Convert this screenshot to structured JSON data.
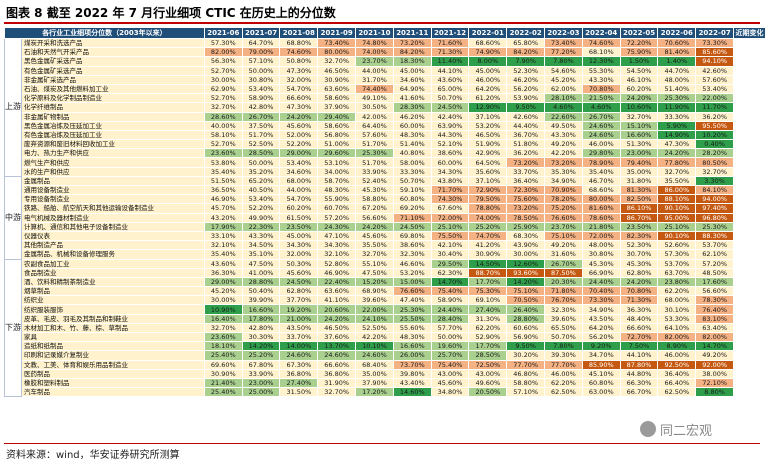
{
  "title": "图表 8 截至 2022 年 7 月行业细项 CTIC 在历史上的分位数",
  "source": "资料来源：wind，华安证券研究所测算",
  "watermark": "同二宏观",
  "colors": {
    "header": "#1f4e79",
    "low": "#2e9e4a",
    "mid_low": "#a9d08e",
    "mid": "#fff2cc",
    "high": "#f4b183",
    "very_high": "#c65911",
    "title_rule": "#c00000"
  },
  "chart_data": {
    "type": "table",
    "title": "截至 2022 年 7 月行业细项 CTIC 在历史上的分位数",
    "columns": [
      "各行业工业细项分位数（2003年以来）",
      "2021-06",
      "2021-07",
      "2021-08",
      "2021-09",
      "2021-10",
      "2021-11",
      "2021-12",
      "2022-01",
      "2022-02",
      "2022-03",
      "2022-04",
      "2022-05",
      "2022-06",
      "2022-07",
      "近期变化"
    ],
    "groups": [
      {
        "name": "上游",
        "rows": [
          {
            "industry": "煤炭开采和洗选产品",
            "values": [
              "57.30%",
              "64.70%",
              "68.80%",
              "73.40%",
              "74.80%",
              "73.20%",
              "71.60%",
              "68.60%",
              "65.80%",
              "73.40%",
              "74.60%",
              "72.20%",
              "70.60%",
              "73.30%"
            ]
          },
          {
            "industry": "石油和天然气开采产品",
            "values": [
              "82.00%",
              "79.00%",
              "74.60%",
              "80.00%",
              "74.00%",
              "84.20%",
              "71.30%",
              "74.90%",
              "84.20%",
              "77.20%",
              "68.10%",
              "75.90%",
              "81.40%",
              "85.60%"
            ]
          },
          {
            "industry": "黑色金属矿采选产品",
            "values": [
              "56.30%",
              "57.10%",
              "50.80%",
              "32.70%",
              "23.70%",
              "18.30%",
              "11.40%",
              "8.00%",
              "7.90%",
              "7.80%",
              "12.30%",
              "1.50%",
              "1.40%",
              "94.10%"
            ]
          },
          {
            "industry": "有色金属矿采选产品",
            "values": [
              "52.70%",
              "50.00%",
              "47.30%",
              "46.50%",
              "44.00%",
              "45.00%",
              "44.10%",
              "45.00%",
              "52.30%",
              "54.60%",
              "55.30%",
              "54.50%",
              "44.70%",
              "42.60%"
            ]
          },
          {
            "industry": "非金属矿采选产品",
            "values": [
              "30.00%",
              "30.80%",
              "32.00%",
              "30.90%",
              "31.70%",
              "34.60%",
              "43.60%",
              "46.00%",
              "46.20%",
              "45.20%",
              "43.30%",
              "46.10%",
              "48.00%",
              "57.60%"
            ]
          },
          {
            "industry": "石油、煤炭及其他燃料加工业",
            "values": [
              "62.90%",
              "53.40%",
              "54.70%",
              "63.60%",
              "74.40%",
              "64.90%",
              "65.00%",
              "64.20%",
              "56.20%",
              "62.00%",
              "70.80%",
              "60.20%",
              "51.40%",
              "53.40%"
            ]
          },
          {
            "industry": "化学原料及化学制品制造业",
            "values": [
              "52.70%",
              "58.90%",
              "66.60%",
              "58.60%",
              "49.10%",
              "41.60%",
              "50.70%",
              "61.20%",
              "53.90%",
              "28.10%",
              "21.50%",
              "24.20%",
              "25.30%",
              "22.00%"
            ]
          },
          {
            "industry": "化学纤维制品",
            "values": [
              "32.70%",
              "42.80%",
              "47.30%",
              "37.90%",
              "30.50%",
              "28.30%",
              "24.50%",
              "12.90%",
              "9.50%",
              "4.60%",
              "4.60%",
              "10.60%",
              "11.90%",
              "11.70%"
            ]
          },
          {
            "industry": "非金属矿物制品",
            "values": [
              "28.60%",
              "26.70%",
              "24.20%",
              "29.40%",
              "42.00%",
              "46.20%",
              "42.40%",
              "37.10%",
              "42.60%",
              "22.60%",
              "26.70%",
              "32.70%",
              "33.30%",
              "36.20%"
            ]
          },
          {
            "industry": "黑色金属冶炼及压延加工业",
            "values": [
              "40.00%",
              "37.50%",
              "45.60%",
              "58.60%",
              "64.40%",
              "60.00%",
              "63.90%",
              "53.20%",
              "44.40%",
              "49.50%",
              "24.60%",
              "15.10%",
              "5.90%",
              "95.50%"
            ]
          },
          {
            "industry": "有色金属冶炼及压延加工业",
            "values": [
              "58.10%",
              "51.70%",
              "52.00%",
              "56.80%",
              "57.60%",
              "48.30%",
              "44.30%",
              "46.50%",
              "36.70%",
              "43.30%",
              "24.60%",
              "16.60%",
              "14.90%",
              "10.20%"
            ]
          },
          {
            "industry": "废弃资源和废旧材料回收加工业",
            "values": [
              "52.70%",
              "52.50%",
              "52.20%",
              "51.00%",
              "51.70%",
              "51.40%",
              "52.10%",
              "51.90%",
              "51.80%",
              "49.20%",
              "46.00%",
              "51.30%",
              "47.30%",
              "0.40%"
            ]
          },
          {
            "industry": "电力、热力生产和供应",
            "values": [
              "23.60%",
              "28.50%",
              "29.00%",
              "29.60%",
              "25.30%",
              "40.80%",
              "38.60%",
              "42.90%",
              "36.20%",
              "42.20%",
              "29.80%",
              "23.00%",
              "24.20%",
              "28.20%"
            ]
          },
          {
            "industry": "燃气生产和供应",
            "values": [
              "53.80%",
              "50.00%",
              "53.40%",
              "53.10%",
              "51.70%",
              "58.00%",
              "60.00%",
              "64.50%",
              "73.20%",
              "73.20%",
              "78.90%",
              "79.40%",
              "77.80%",
              "80.50%"
            ]
          },
          {
            "industry": "水的生产和供应",
            "values": [
              "35.40%",
              "35.20%",
              "34.60%",
              "34.00%",
              "33.90%",
              "33.30%",
              "34.30%",
              "35.60%",
              "33.70%",
              "35.30%",
              "35.40%",
              "35.00%",
              "32.70%",
              "32.70%"
            ]
          }
        ]
      },
      {
        "name": "中游",
        "rows": [
          {
            "industry": "金属制品",
            "values": [
              "51.50%",
              "65.20%",
              "68.00%",
              "58.70%",
              "52.40%",
              "50.70%",
              "43.80%",
              "37.10%",
              "36.40%",
              "34.90%",
              "46.70%",
              "31.80%",
              "35.50%",
              "3.30%"
            ]
          },
          {
            "industry": "通用设备制造业",
            "values": [
              "36.50%",
              "40.50%",
              "44.00%",
              "48.30%",
              "45.30%",
              "59.10%",
              "71.70%",
              "72.90%",
              "72.30%",
              "70.90%",
              "68.60%",
              "81.30%",
              "86.00%",
              "84.10%"
            ]
          },
          {
            "industry": "专用设备制造业",
            "values": [
              "46.90%",
              "53.40%",
              "54.70%",
              "55.90%",
              "58.80%",
              "60.80%",
              "74.30%",
              "79.50%",
              "75.60%",
              "78.20%",
              "80.00%",
              "82.50%",
              "88.10%",
              "94.00%"
            ]
          },
          {
            "industry": "铁路、船舶、航空航天和其他运输设备制造业",
            "values": [
              "45.70%",
              "52.20%",
              "60.20%",
              "60.70%",
              "67.20%",
              "69.20%",
              "67.60%",
              "78.80%",
              "73.20%",
              "75.20%",
              "81.60%",
              "86.10%",
              "90.10%",
              "97.40%"
            ]
          },
          {
            "industry": "电气机械及器材制造业",
            "values": [
              "43.20%",
              "49.90%",
              "61.50%",
              "57.20%",
              "56.60%",
              "71.10%",
              "72.00%",
              "74.00%",
              "78.50%",
              "76.60%",
              "78.60%",
              "86.70%",
              "95.00%",
              "96.80%"
            ]
          },
          {
            "industry": "计算机、通信和其他电子设备制造业",
            "values": [
              "17.90%",
              "22.30%",
              "23.50%",
              "24.30%",
              "24.20%",
              "24.50%",
              "25.10%",
              "25.20%",
              "25.90%",
              "23.70%",
              "21.80%",
              "23.50%",
              "25.10%",
              "25.30%"
            ]
          },
          {
            "industry": "仪器仪表",
            "values": [
              "33.10%",
              "43.30%",
              "45.00%",
              "47.10%",
              "45.60%",
              "69.80%",
              "75.50%",
              "74.70%",
              "68.30%",
              "75.10%",
              "72.00%",
              "82.30%",
              "90.10%",
              "88.30%"
            ]
          },
          {
            "industry": "其他制造产品",
            "values": [
              "32.10%",
              "34.50%",
              "34.30%",
              "34.30%",
              "35.50%",
              "38.60%",
              "42.10%",
              "41.20%",
              "43.90%",
              "49.20%",
              "48.00%",
              "52.30%",
              "52.60%",
              "53.70%"
            ]
          },
          {
            "industry": "金属制品、机械和设备修理服务",
            "values": [
              "35.40%",
              "35.10%",
              "32.00%",
              "32.10%",
              "32.70%",
              "32.30%",
              "30.40%",
              "30.90%",
              "30.00%",
              "31.60%",
              "30.80%",
              "30.70%",
              "57.30%",
              "62.10%"
            ]
          }
        ]
      },
      {
        "name": "下游",
        "rows": [
          {
            "industry": "农副食品加工业",
            "values": [
              "43.60%",
              "47.50%",
              "50.30%",
              "52.80%",
              "55.10%",
              "46.60%",
              "29.50%",
              "14.50%",
              "12.60%",
              "26.70%",
              "45.30%",
              "45.30%",
              "53.70%",
              "57.20%"
            ]
          },
          {
            "industry": "食品制造业",
            "values": [
              "36.30%",
              "41.00%",
              "45.60%",
              "46.90%",
              "47.50%",
              "53.20%",
              "62.30%",
              "88.70%",
              "93.60%",
              "87.50%",
              "66.90%",
              "62.80%",
              "63.70%",
              "48.50%"
            ]
          },
          {
            "industry": "酒、饮料和精制茶制造业",
            "values": [
              "29.00%",
              "28.80%",
              "24.50%",
              "22.40%",
              "15.20%",
              "15.00%",
              "14.70%",
              "17.70%",
              "14.20%",
              "20.30%",
              "24.40%",
              "24.20%",
              "23.80%",
              "17.60%"
            ]
          },
          {
            "industry": "烟草制品",
            "values": [
              "45.20%",
              "50.40%",
              "62.80%",
              "63.60%",
              "68.90%",
              "76.60%",
              "75.40%",
              "75.30%",
              "75.10%",
              "71.80%",
              "70.40%",
              "70.80%",
              "62.20%",
              "56.60%"
            ]
          },
          {
            "industry": "纺织业",
            "values": [
              "30.00%",
              "39.90%",
              "37.70%",
              "41.10%",
              "39.60%",
              "47.40%",
              "58.90%",
              "69.10%",
              "70.50%",
              "76.70%",
              "73.30%",
              "71.30%",
              "68.00%",
              "78.30%"
            ]
          },
          {
            "industry": "纺织服装服饰",
            "values": [
              "10.90%",
              "16.60%",
              "19.20%",
              "20.60%",
              "22.00%",
              "25.30%",
              "24.40%",
              "27.40%",
              "26.40%",
              "32.30%",
              "34.90%",
              "36.30%",
              "30.10%",
              "76.40%"
            ]
          },
          {
            "industry": "皮革、毛皮、羽毛及其制品和制鞋业",
            "values": [
              "16.40%",
              "17.80%",
              "21.00%",
              "24.20%",
              "24.10%",
              "25.50%",
              "28.40%",
              "31.30%",
              "28.80%",
              "39.60%",
              "43.50%",
              "48.40%",
              "53.30%",
              "83.10%"
            ]
          },
          {
            "industry": "木材加工和木、竹、藤、棕、草制品",
            "values": [
              "32.70%",
              "42.80%",
              "43.50%",
              "46.50%",
              "52.50%",
              "55.60%",
              "57.70%",
              "62.20%",
              "60.60%",
              "65.50%",
              "64.20%",
              "66.60%",
              "64.10%",
              "63.40%"
            ]
          },
          {
            "industry": "家具",
            "values": [
              "23.60%",
              "30.30%",
              "33.70%",
              "37.60%",
              "42.20%",
              "48.30%",
              "50.00%",
              "52.90%",
              "56.90%",
              "50.70%",
              "56.20%",
              "72.70%",
              "82.00%",
              "82.00%"
            ]
          },
          {
            "industry": "造纸和纸制品",
            "values": [
              "18.10%",
              "14.20%",
              "14.00%",
              "13.70%",
              "10.10%",
              "16.60%",
              "19.60%",
              "17.70%",
              "9.50%",
              "7.80%",
              "9.20%",
              "7.50%",
              "8.90%",
              "14.70%"
            ]
          },
          {
            "industry": "印刷和记录媒介复制业",
            "values": [
              "25.40%",
              "25.20%",
              "24.60%",
              "24.60%",
              "24.60%",
              "26.00%",
              "25.70%",
              "28.50%",
              "30.20%",
              "39.30%",
              "34.70%",
              "44.10%",
              "46.00%",
              "49.20%"
            ]
          },
          {
            "industry": "文教、工美、体育和娱乐用品制造业",
            "values": [
              "69.60%",
              "67.80%",
              "67.30%",
              "66.60%",
              "68.40%",
              "73.70%",
              "75.40%",
              "72.50%",
              "77.70%",
              "77.70%",
              "85.90%",
              "87.80%",
              "92.50%",
              "92.00%"
            ]
          },
          {
            "industry": "医药制品",
            "values": [
              "30.90%",
              "33.90%",
              "36.80%",
              "36.80%",
              "35.00%",
              "39.80%",
              "43.00%",
              "43.00%",
              "46.80%",
              "46.00%",
              "45.10%",
              "44.80%",
              "36.40%",
              "38.00%"
            ]
          },
          {
            "industry": "橡胶和塑料制品",
            "values": [
              "21.40%",
              "23.00%",
              "27.40%",
              "31.90%",
              "37.90%",
              "43.40%",
              "45.60%",
              "49.60%",
              "58.80%",
              "62.20%",
              "60.80%",
              "66.30%",
              "66.40%",
              "72.10%"
            ]
          },
          {
            "industry": "汽车制品",
            "values": [
              "25.40%",
              "25.00%",
              "31.50%",
              "32.70%",
              "17.20%",
              "14.60%",
              "34.80%",
              "20.50%",
              "57.10%",
              "62.50%",
              "63.00%",
              "66.70%",
              "62.50%",
              "8.80%"
            ]
          }
        ]
      }
    ],
    "legend_note": ""
  }
}
